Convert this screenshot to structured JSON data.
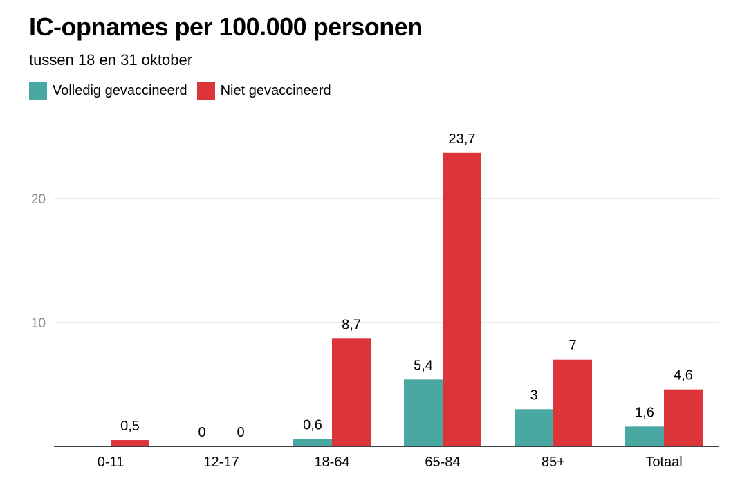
{
  "chart_data": {
    "type": "bar",
    "title": "IC-opnames per 100.000 personen",
    "subtitle": "tussen 18 en 31 oktober",
    "categories": [
      "0-11",
      "12-17",
      "18-64",
      "65-84",
      "85+",
      "Totaal"
    ],
    "series": [
      {
        "name": "Volledig gevaccineerd",
        "color": "#4aa8a2",
        "values": [
          null,
          0,
          0.6,
          5.4,
          3,
          1.6
        ],
        "labels": [
          "",
          "0",
          "0,6",
          "5,4",
          "3",
          "1,6"
        ]
      },
      {
        "name": "Niet gevaccineerd",
        "color": "#dc3539",
        "values": [
          0.5,
          0,
          8.7,
          23.7,
          7,
          4.6
        ],
        "labels": [
          "0,5",
          "0",
          "8,7",
          "23,7",
          "7",
          "4,6"
        ]
      }
    ],
    "yticks": [
      {
        "value": 10,
        "label": "10"
      },
      {
        "value": 20,
        "label": "20"
      }
    ],
    "ylim": [
      0,
      27
    ],
    "grid": true,
    "legend": "top-left"
  }
}
